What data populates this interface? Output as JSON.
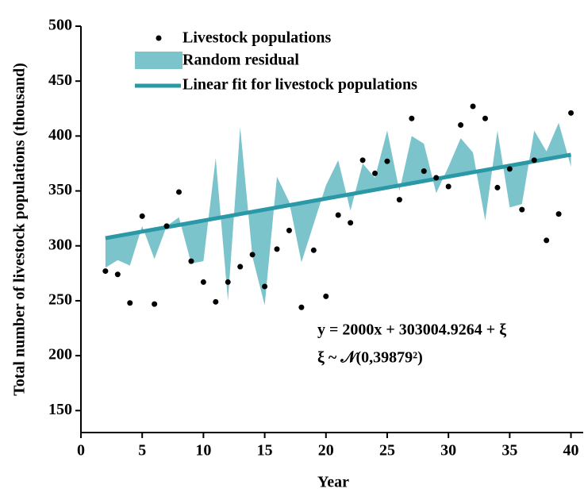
{
  "chart_data": {
    "type": "scatter",
    "x_label": "Year",
    "y_label": "Total number of livestock populations (thousand)",
    "xlim": [
      0,
      41
    ],
    "xticks": [
      0,
      5,
      10,
      15,
      20,
      25,
      30,
      35,
      40
    ],
    "ylim": [
      130,
      500
    ],
    "yticks": [
      150,
      200,
      250,
      300,
      350,
      400,
      450,
      500
    ],
    "x": [
      2,
      3,
      4,
      5,
      6,
      7,
      8,
      9,
      10,
      11,
      12,
      13,
      14,
      15,
      16,
      17,
      18,
      19,
      20,
      21,
      22,
      23,
      24,
      25,
      26,
      27,
      28,
      29,
      30,
      31,
      32,
      33,
      34,
      35,
      36,
      37,
      38,
      39,
      40
    ],
    "series": [
      {
        "name": "Livestock populations",
        "color": "#000000",
        "values": [
          277,
          274,
          248,
          327,
          247,
          318,
          349,
          286,
          267,
          249,
          267,
          281,
          292,
          263,
          297,
          314,
          244,
          296,
          254,
          328,
          321,
          378,
          366,
          377,
          342,
          416,
          368,
          362,
          354,
          410,
          427,
          416,
          353,
          370,
          333,
          378,
          305,
          329,
          421
        ]
      },
      {
        "name": "Random residual",
        "color": "#7cc4cc",
        "values": [
          280,
          287,
          282,
          318,
          288,
          318,
          326,
          284,
          286,
          380,
          250,
          408,
          290,
          246,
          363,
          340,
          285,
          320,
          355,
          378,
          332,
          375,
          362,
          405,
          350,
          400,
          393,
          348,
          372,
          398,
          385,
          323,
          405,
          335,
          338,
          405,
          386,
          412,
          372
        ]
      },
      {
        "name": "Linear fit for livestock populations",
        "color": "#2a98a6",
        "x": [
          2,
          40
        ],
        "values": [
          307,
          383
        ]
      }
    ],
    "equation": "y = 2000x + 303004.9264 + ξ",
    "distribution": "ξ ~ 𝒩(0,39879²)"
  }
}
